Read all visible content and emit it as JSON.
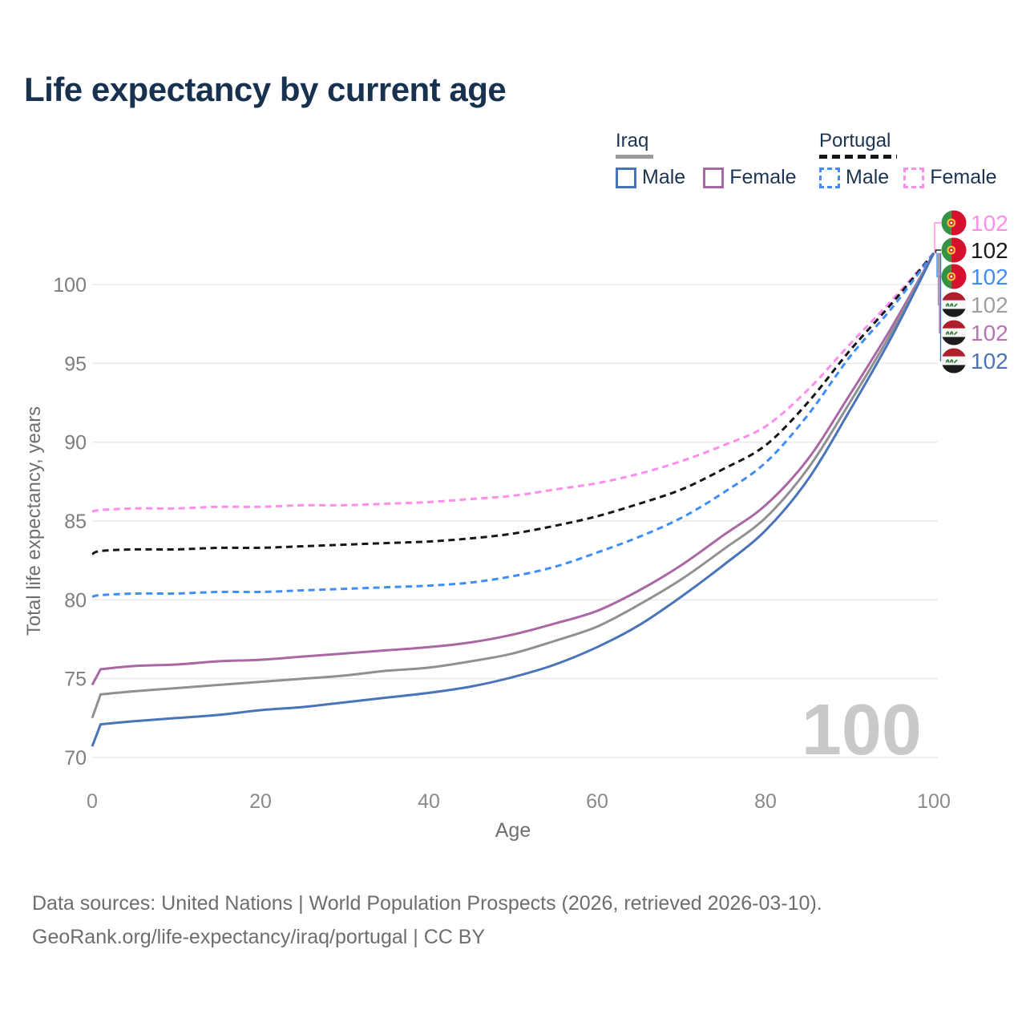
{
  "title": "Life expectancy by current age",
  "watermark": "100",
  "legend": {
    "groups": [
      {
        "name": "Iraq",
        "style": "solid",
        "underline_color": "#9b9b9b",
        "items": [
          {
            "label": "Male",
            "color": "#4a74b9"
          },
          {
            "label": "Female",
            "color": "#a967a6"
          }
        ]
      },
      {
        "name": "Portugal",
        "style": "dashed",
        "underline_color": "#141414",
        "items": [
          {
            "label": "Male",
            "color": "#3f8ef7"
          },
          {
            "label": "Female",
            "color": "#ff8deb"
          }
        ]
      }
    ]
  },
  "chart_data": {
    "type": "line",
    "title": "Life expectancy by current age",
    "xlabel": "Age",
    "ylabel": "Total life expectancy, years",
    "xlim": [
      0,
      100
    ],
    "ylim": [
      70,
      102
    ],
    "grid": "horizontal",
    "legend_position": "top-right",
    "x_ticks": [
      0,
      20,
      40,
      60,
      80,
      100
    ],
    "y_ticks": [
      70,
      75,
      80,
      85,
      90,
      95,
      100
    ],
    "x": [
      0,
      1,
      5,
      10,
      15,
      20,
      25,
      30,
      35,
      40,
      45,
      50,
      55,
      60,
      65,
      70,
      75,
      80,
      85,
      90,
      95,
      100
    ],
    "series": [
      {
        "id": "portugal-female",
        "name": "Portugal Female",
        "country": "Portugal",
        "sex": "Female",
        "style": "dashed",
        "color": "#ff8deb",
        "jump_at_age_1": false,
        "values": [
          85.6,
          85.7,
          85.8,
          85.8,
          85.9,
          85.9,
          86.0,
          86.0,
          86.1,
          86.2,
          86.4,
          86.6,
          87.0,
          87.4,
          88.0,
          88.8,
          89.8,
          91.0,
          93.3,
          96.2,
          99.0,
          102
        ]
      },
      {
        "id": "portugal-both",
        "name": "Portugal Both sexes",
        "country": "Portugal",
        "sex": "Both",
        "style": "dashed",
        "color": "#161616",
        "jump_at_age_1": false,
        "values": [
          82.9,
          83.1,
          83.2,
          83.2,
          83.3,
          83.3,
          83.4,
          83.5,
          83.6,
          83.7,
          83.9,
          84.2,
          84.7,
          85.3,
          86.1,
          87.0,
          88.3,
          89.8,
          92.5,
          95.8,
          98.8,
          102
        ]
      },
      {
        "id": "portugal-male",
        "name": "Portugal Male",
        "country": "Portugal",
        "sex": "Male",
        "style": "dashed",
        "color": "#3f8ef7",
        "jump_at_age_1": false,
        "values": [
          80.2,
          80.3,
          80.4,
          80.4,
          80.5,
          80.5,
          80.6,
          80.7,
          80.8,
          80.9,
          81.1,
          81.5,
          82.1,
          83.0,
          84.0,
          85.2,
          86.8,
          88.7,
          91.7,
          95.4,
          98.5,
          102
        ]
      },
      {
        "id": "iraq-female",
        "name": "Iraq Female",
        "country": "Iraq",
        "sex": "Female",
        "style": "solid",
        "color": "#a967a6",
        "jump_at_age_1": true,
        "values": [
          74.6,
          75.6,
          75.8,
          75.9,
          76.1,
          76.2,
          76.4,
          76.6,
          76.8,
          77.0,
          77.3,
          77.8,
          78.5,
          79.3,
          80.6,
          82.2,
          84.1,
          86.0,
          88.9,
          93.0,
          97.3,
          102
        ]
      },
      {
        "id": "iraq-both",
        "name": "Iraq Both sexes",
        "country": "Iraq",
        "sex": "Both",
        "style": "solid",
        "color": "#909090",
        "jump_at_age_1": true,
        "values": [
          72.5,
          74.0,
          74.2,
          74.4,
          74.6,
          74.8,
          75.0,
          75.2,
          75.5,
          75.7,
          76.1,
          76.6,
          77.4,
          78.3,
          79.7,
          81.3,
          83.2,
          85.2,
          88.3,
          92.5,
          97.0,
          102
        ]
      },
      {
        "id": "iraq-male",
        "name": "Iraq Male",
        "country": "Iraq",
        "sex": "Male",
        "style": "solid",
        "color": "#4a74b9",
        "jump_at_age_1": true,
        "values": [
          70.7,
          72.1,
          72.3,
          72.5,
          72.7,
          73.0,
          73.2,
          73.5,
          73.8,
          74.1,
          74.5,
          75.1,
          75.9,
          77.0,
          78.4,
          80.2,
          82.2,
          84.4,
          87.6,
          92.0,
          96.7,
          102
        ]
      }
    ],
    "end_labels": [
      {
        "id": "portugal-female",
        "flag": "portugal",
        "value": "102",
        "color": "#ff8deb"
      },
      {
        "id": "portugal-both",
        "flag": "portugal",
        "value": "102",
        "color": "#1a1a1a"
      },
      {
        "id": "portugal-male",
        "flag": "portugal",
        "value": "102",
        "color": "#3f8ef7"
      },
      {
        "id": "iraq-both",
        "flag": "iraq",
        "value": "102",
        "color": "#a0a0a0"
      },
      {
        "id": "iraq-female",
        "flag": "iraq",
        "value": "102",
        "color": "#b873b3"
      },
      {
        "id": "iraq-male",
        "flag": "iraq",
        "value": "102",
        "color": "#4a74b9"
      }
    ]
  },
  "footer": {
    "line1": "Data sources: United Nations | World Population Prospects (2026, retrieved 2026-03-10).",
    "line2": "GeoRank.org/life-expectancy/iraq/portugal | CC BY"
  }
}
